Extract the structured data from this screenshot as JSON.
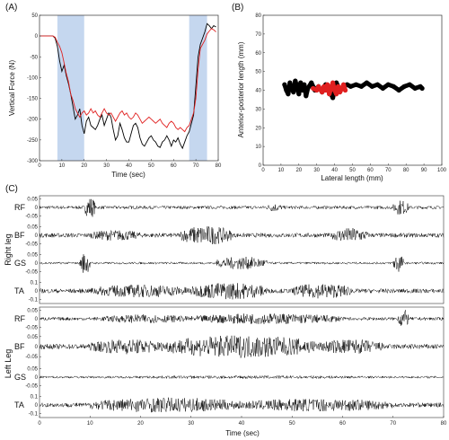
{
  "panel_labels": [
    "(A)",
    "(B)",
    "(C)"
  ],
  "chart_data": [
    {
      "type": "line",
      "panel": "(A)",
      "xlabel": "Time (sec)",
      "ylabel": "Vertical Force (N)",
      "xlim": [
        0,
        80
      ],
      "ylim": [
        -300,
        50
      ],
      "xticks": [
        "0",
        "10",
        "20",
        "30",
        "40",
        "50",
        "60",
        "70",
        "80"
      ],
      "yticks": [
        "50",
        "0",
        "-50",
        "-100",
        "-150",
        "-200",
        "-250",
        "-300"
      ],
      "shaded_regions": [
        [
          8,
          20
        ],
        [
          67,
          75
        ]
      ],
      "shade_color": "#c5d7ef",
      "series": [
        {
          "color": "#000000",
          "points": [
            [
              0,
              0
            ],
            [
              6,
              0
            ],
            [
              7,
              -5
            ],
            [
              8,
              -25
            ],
            [
              9,
              -60
            ],
            [
              10,
              -85
            ],
            [
              11,
              -70
            ],
            [
              12,
              -95
            ],
            [
              13,
              -115
            ],
            [
              14,
              -140
            ],
            [
              15,
              -170
            ],
            [
              16,
              -200
            ],
            [
              17,
              -190
            ],
            [
              18,
              -175
            ],
            [
              19,
              -215
            ],
            [
              20,
              -235
            ],
            [
              21,
              -205
            ],
            [
              22,
              -195
            ],
            [
              23,
              -215
            ],
            [
              24,
              -220
            ],
            [
              25,
              -225
            ],
            [
              26,
              -215
            ],
            [
              27,
              -200
            ],
            [
              28,
              -190
            ],
            [
              29,
              -215
            ],
            [
              30,
              -200
            ],
            [
              31,
              -185
            ],
            [
              32,
              -195
            ],
            [
              33,
              -225
            ],
            [
              34,
              -250
            ],
            [
              35,
              -240
            ],
            [
              36,
              -210
            ],
            [
              37,
              -225
            ],
            [
              38,
              -245
            ],
            [
              39,
              -255
            ],
            [
              40,
              -255
            ],
            [
              41,
              -235
            ],
            [
              42,
              -215
            ],
            [
              43,
              -210
            ],
            [
              44,
              -220
            ],
            [
              45,
              -245
            ],
            [
              46,
              -260
            ],
            [
              47,
              -265
            ],
            [
              48,
              -255
            ],
            [
              49,
              -245
            ],
            [
              50,
              -240
            ],
            [
              51,
              -250
            ],
            [
              52,
              -255
            ],
            [
              53,
              -265
            ],
            [
              54,
              -268
            ],
            [
              55,
              -255
            ],
            [
              56,
              -250
            ],
            [
              57,
              -240
            ],
            [
              58,
              -250
            ],
            [
              59,
              -265
            ],
            [
              60,
              -250
            ],
            [
              61,
              -255
            ],
            [
              62,
              -245
            ],
            [
              63,
              -260
            ],
            [
              64,
              -270
            ],
            [
              65,
              -255
            ],
            [
              66,
              -240
            ],
            [
              67,
              -230
            ],
            [
              68,
              -210
            ],
            [
              69,
              -190
            ],
            [
              70,
              -120
            ],
            [
              71,
              -50
            ],
            [
              72,
              -20
            ],
            [
              73,
              -5
            ],
            [
              74,
              10
            ],
            [
              75,
              30
            ],
            [
              76,
              25
            ],
            [
              77,
              18
            ],
            [
              78,
              25
            ],
            [
              79,
              22
            ]
          ]
        },
        {
          "color": "#e02020",
          "points": [
            [
              0,
              0
            ],
            [
              6,
              0
            ],
            [
              7,
              -3
            ],
            [
              8,
              -15
            ],
            [
              9,
              -25
            ],
            [
              10,
              -40
            ],
            [
              11,
              -65
            ],
            [
              12,
              -90
            ],
            [
              13,
              -110
            ],
            [
              14,
              -140
            ],
            [
              15,
              -155
            ],
            [
              16,
              -175
            ],
            [
              17,
              -185
            ],
            [
              18,
              -195
            ],
            [
              19,
              -185
            ],
            [
              20,
              -180
            ],
            [
              21,
              -190
            ],
            [
              22,
              -185
            ],
            [
              23,
              -175
            ],
            [
              24,
              -185
            ],
            [
              25,
              -180
            ],
            [
              26,
              -190
            ],
            [
              27,
              -195
            ],
            [
              28,
              -185
            ],
            [
              29,
              -175
            ],
            [
              30,
              -185
            ],
            [
              31,
              -190
            ],
            [
              32,
              -185
            ],
            [
              33,
              -195
            ],
            [
              34,
              -205
            ],
            [
              35,
              -195
            ],
            [
              36,
              -185
            ],
            [
              37,
              -180
            ],
            [
              38,
              -190
            ],
            [
              39,
              -185
            ],
            [
              40,
              -195
            ],
            [
              41,
              -200
            ],
            [
              42,
              -195
            ],
            [
              43,
              -185
            ],
            [
              44,
              -190
            ],
            [
              45,
              -200
            ],
            [
              46,
              -210
            ],
            [
              47,
              -205
            ],
            [
              48,
              -200
            ],
            [
              49,
              -195
            ],
            [
              50,
              -200
            ],
            [
              51,
              -205
            ],
            [
              52,
              -210
            ],
            [
              53,
              -205
            ],
            [
              54,
              -200
            ],
            [
              55,
              -210
            ],
            [
              56,
              -215
            ],
            [
              57,
              -220
            ],
            [
              58,
              -210
            ],
            [
              59,
              -205
            ],
            [
              60,
              -210
            ],
            [
              61,
              -220
            ],
            [
              62,
              -225
            ],
            [
              63,
              -220
            ],
            [
              64,
              -225
            ],
            [
              65,
              -230
            ],
            [
              66,
              -220
            ],
            [
              67,
              -215
            ],
            [
              68,
              -200
            ],
            [
              69,
              -185
            ],
            [
              70,
              -150
            ],
            [
              71,
              -80
            ],
            [
              72,
              -30
            ],
            [
              73,
              -20
            ],
            [
              74,
              -10
            ],
            [
              75,
              5
            ],
            [
              76,
              12
            ],
            [
              77,
              18
            ],
            [
              78,
              15
            ],
            [
              79,
              10
            ]
          ]
        }
      ]
    },
    {
      "type": "scatter",
      "panel": "(B)",
      "xlabel": "Lateral length (mm)",
      "ylabel": "Anterior-posterior length (mm)",
      "xlim": [
        0,
        100
      ],
      "ylim": [
        0,
        80
      ],
      "xticks": [
        "0",
        "10",
        "20",
        "30",
        "40",
        "50",
        "60",
        "70",
        "80",
        "90",
        "100"
      ],
      "yticks": [
        "0",
        "10",
        "20",
        "30",
        "40",
        "50",
        "60",
        "70",
        "80"
      ],
      "series": [
        {
          "color": "#000000",
          "points": [
            [
              12,
              43
            ],
            [
              13,
              40
            ],
            [
              14,
              38
            ],
            [
              15,
              44
            ],
            [
              16,
              41
            ],
            [
              17,
              39
            ],
            [
              18,
              45
            ],
            [
              19,
              42
            ],
            [
              20,
              38
            ],
            [
              21,
              44
            ],
            [
              22,
              40
            ],
            [
              23,
              43
            ],
            [
              24,
              37
            ],
            [
              25,
              41
            ],
            [
              27,
              44
            ],
            [
              29,
              40
            ],
            [
              31,
              42
            ],
            [
              33,
              39
            ],
            [
              35,
              43
            ],
            [
              37,
              40
            ],
            [
              39,
              36
            ],
            [
              41,
              44
            ],
            [
              43,
              40
            ],
            [
              45,
              42
            ],
            [
              47,
              43
            ],
            [
              49,
              42
            ],
            [
              52,
              43
            ],
            [
              55,
              42
            ],
            [
              58,
              44
            ],
            [
              61,
              42
            ],
            [
              64,
              43
            ],
            [
              67,
              41
            ],
            [
              70,
              43
            ],
            [
              73,
              42
            ],
            [
              76,
              40
            ],
            [
              79,
              42
            ],
            [
              82,
              43
            ],
            [
              85,
              41
            ],
            [
              88,
              42
            ],
            [
              89,
              41
            ]
          ]
        },
        {
          "color": "#e02020",
          "points": [
            [
              28,
              41
            ],
            [
              30,
              40
            ],
            [
              31,
              42
            ],
            [
              33,
              39
            ],
            [
              34,
              42
            ],
            [
              35,
              40
            ],
            [
              36,
              43
            ],
            [
              37,
              38
            ],
            [
              38,
              41
            ],
            [
              39,
              44
            ],
            [
              40,
              40
            ],
            [
              41,
              38
            ],
            [
              42,
              42
            ],
            [
              43,
              39
            ],
            [
              44,
              41
            ],
            [
              45,
              43
            ],
            [
              46,
              40
            ]
          ]
        }
      ]
    },
    {
      "type": "line",
      "panel": "(C)",
      "xlabel": "Time (sec)",
      "xlim": [
        0,
        80
      ],
      "xticks": [
        "0",
        "10",
        "20",
        "30",
        "40",
        "50",
        "60",
        "70",
        "80"
      ],
      "groups": [
        {
          "name": "Right leg",
          "channels": [
            {
              "name": "RF",
              "yticks": [
                "0.05",
                "0",
                "-0.05"
              ],
              "bursts": [
                [
                  9,
                  11,
                  1.0
                ],
                [
                  45,
                  48,
                  0.4
                ],
                [
                  70,
                  73,
                  0.7
                ]
              ],
              "baseline": 0.15
            },
            {
              "name": "BF",
              "yticks": [
                "0.05",
                "0",
                "-0.05"
              ],
              "bursts": [
                [
                  10,
                  20,
                  0.5
                ],
                [
                  28,
                  38,
                  0.9
                ],
                [
                  58,
                  65,
                  0.7
                ]
              ],
              "baseline": 0.2
            },
            {
              "name": "GS",
              "yticks": [
                "0.05",
                "0",
                "-0.05"
              ],
              "bursts": [
                [
                  8,
                  10,
                  1.0
                ],
                [
                  35,
                  45,
                  0.6
                ],
                [
                  70,
                  72,
                  0.9
                ]
              ],
              "baseline": 0.1
            },
            {
              "name": "TA",
              "yticks": [
                "0.1",
                "0",
                "-0.1"
              ],
              "bursts": [
                [
                  10,
                  30,
                  0.6
                ],
                [
                  30,
                  45,
                  0.8
                ],
                [
                  50,
                  62,
                  0.7
                ]
              ],
              "baseline": 0.2
            }
          ]
        },
        {
          "name": "Left Leg",
          "channels": [
            {
              "name": "RF",
              "yticks": [
                "0.05",
                "0",
                "-0.05"
              ],
              "bursts": [
                [
                  12,
                  30,
                  0.4
                ],
                [
                  30,
                  60,
                  0.5
                ],
                [
                  71,
                  73,
                  0.9
                ]
              ],
              "baseline": 0.15
            },
            {
              "name": "BF",
              "yticks": [
                "0.05",
                "0",
                "-0.05"
              ],
              "bursts": [
                [
                  10,
                  25,
                  0.6
                ],
                [
                  25,
                  55,
                  0.9
                ],
                [
                  55,
                  68,
                  0.6
                ]
              ],
              "baseline": 0.2
            },
            {
              "name": "GS",
              "yticks": [
                "0.05",
                "0",
                "-0.05"
              ],
              "bursts": [
                [
                  10,
                  72,
                  0.15
                ]
              ],
              "baseline": 0.1
            },
            {
              "name": "TA",
              "yticks": [
                "0.1",
                "0",
                "-0.1"
              ],
              "bursts": [
                [
                  10,
                  40,
                  0.7
                ],
                [
                  40,
                  70,
                  0.6
                ]
              ],
              "baseline": 0.2
            }
          ]
        }
      ]
    }
  ]
}
